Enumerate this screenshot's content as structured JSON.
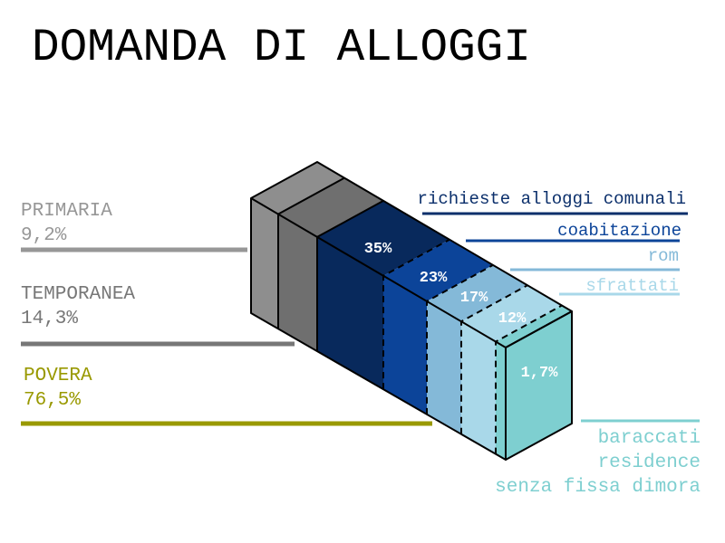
{
  "title": "DOMANDA DI ALLOGGI",
  "categories": [
    {
      "label": "PRIMARIA",
      "value": "9,2%",
      "color": "#979797"
    },
    {
      "label": "TEMPORANEA",
      "value": "14,3%",
      "color": "#777777"
    },
    {
      "label": "POVERA",
      "value": "76,5%",
      "color": "#999900"
    }
  ],
  "segments": [
    {
      "value": "",
      "color": "#8e8e8e"
    },
    {
      "value": "",
      "color": "#6f6f6f"
    },
    {
      "value": "35%",
      "color": "#08295c"
    },
    {
      "value": "23%",
      "color": "#0c4499"
    },
    {
      "value": "17%",
      "color": "#84b9d8"
    },
    {
      "value": "12%",
      "color": "#a9d8e9"
    },
    {
      "value": "1,7%",
      "color": "#7ecfd0"
    }
  ],
  "right_labels": [
    {
      "text": "richieste alloggi comunali",
      "color": "#0b2f6b"
    },
    {
      "text": "coabitazione",
      "color": "#0c4499"
    },
    {
      "text": "rom",
      "color": "#84b9d8"
    },
    {
      "text": "sfrattati",
      "color": "#a9d8e9"
    }
  ],
  "bottom_labels": {
    "color": "#7ecfd0",
    "lines": [
      "baraccati",
      "residence",
      "senza fissa dimora"
    ]
  }
}
